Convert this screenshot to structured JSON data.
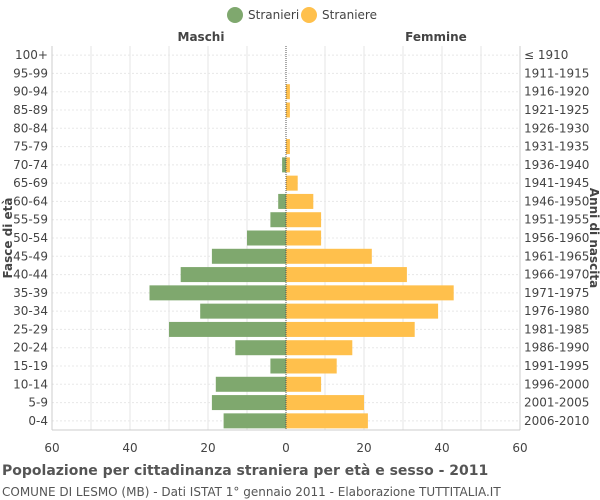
{
  "chart_data": {
    "type": "bar",
    "orientation": "horizontal-pyramid",
    "title": "Popolazione per cittadinanza straniera per età e sesso - 2011",
    "subtitle": "COMUNE DI LESMO (MB) - Dati ISTAT 1° gennaio 2011 - Elaborazione TUTTITALIA.IT",
    "left_header": "Maschi",
    "right_header": "Femmine",
    "ylabel_left": "Fasce di età",
    "ylabel_right": "Anni di nascita",
    "xlim": [
      -60,
      60
    ],
    "xticks": [
      "60",
      "40",
      "20",
      "0",
      "20",
      "40",
      "60"
    ],
    "grid": true,
    "legend_position": "top-center",
    "age_groups": [
      "100+",
      "95-99",
      "90-94",
      "85-89",
      "80-84",
      "75-79",
      "70-74",
      "65-69",
      "60-64",
      "55-59",
      "50-54",
      "45-49",
      "40-44",
      "35-39",
      "30-34",
      "25-29",
      "20-24",
      "15-19",
      "10-14",
      "5-9",
      "0-4"
    ],
    "birth_years": [
      "≤ 1910",
      "1911-1915",
      "1916-1920",
      "1921-1925",
      "1926-1930",
      "1931-1935",
      "1936-1940",
      "1941-1945",
      "1946-1950",
      "1951-1955",
      "1956-1960",
      "1961-1965",
      "1966-1970",
      "1971-1975",
      "1976-1980",
      "1981-1985",
      "1986-1990",
      "1991-1995",
      "1996-2000",
      "2001-2005",
      "2006-2010"
    ],
    "series": [
      {
        "name": "Stranieri",
        "color": "#7fa86e",
        "values": [
          0,
          0,
          0,
          0,
          0,
          0,
          1,
          0,
          2,
          4,
          10,
          19,
          27,
          35,
          22,
          30,
          13,
          4,
          18,
          19,
          16
        ]
      },
      {
        "name": "Straniere",
        "color": "#ffc04c",
        "values": [
          0,
          0,
          1,
          1,
          0,
          1,
          1,
          3,
          7,
          9,
          9,
          22,
          31,
          43,
          39,
          33,
          17,
          13,
          9,
          20,
          21
        ]
      }
    ]
  }
}
